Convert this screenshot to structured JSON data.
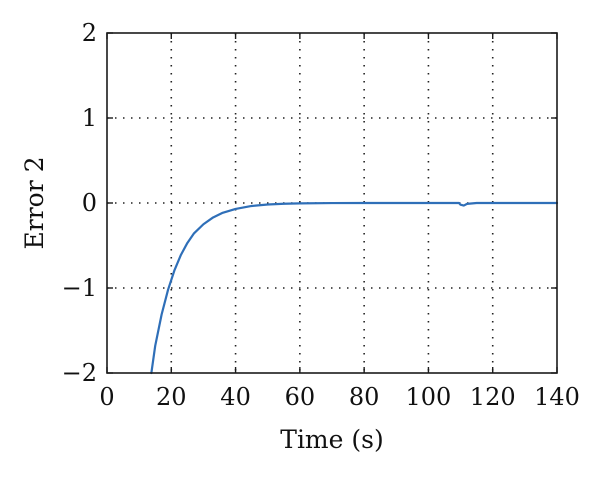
{
  "chart_data": {
    "type": "line",
    "title": "",
    "xlabel": "Time (s)",
    "ylabel": "Error 2",
    "xlim": [
      0,
      140
    ],
    "ylim": [
      -2,
      2
    ],
    "xticks": [
      0,
      20,
      40,
      60,
      80,
      100,
      120,
      140
    ],
    "yticks": [
      -2,
      -1,
      0,
      1,
      2
    ],
    "xtick_labels": [
      "0",
      "20",
      "40",
      "60",
      "80",
      "100",
      "120",
      "140"
    ],
    "ytick_labels": [
      "−2",
      "−1",
      "0",
      "1",
      "2"
    ],
    "grid": true,
    "legend": "none",
    "series": [
      {
        "color": "#2f6fb8",
        "x": [
          13.8,
          15,
          17,
          19,
          21,
          23,
          25,
          27,
          30,
          33,
          36,
          40,
          45,
          50,
          55,
          60,
          70,
          80,
          90,
          100,
          108,
          109.5,
          110,
          111,
          112,
          115,
          120,
          130,
          140
        ],
        "y": [
          -2.0,
          -1.68,
          -1.31,
          -1.02,
          -0.79,
          -0.61,
          -0.47,
          -0.36,
          -0.25,
          -0.17,
          -0.115,
          -0.07,
          -0.035,
          -0.018,
          -0.009,
          -0.004,
          -0.001,
          0.0,
          0.0,
          0.0,
          0.0,
          0.0,
          -0.02,
          -0.03,
          -0.01,
          0.0,
          0.0,
          0.0,
          0.0
        ]
      }
    ]
  }
}
